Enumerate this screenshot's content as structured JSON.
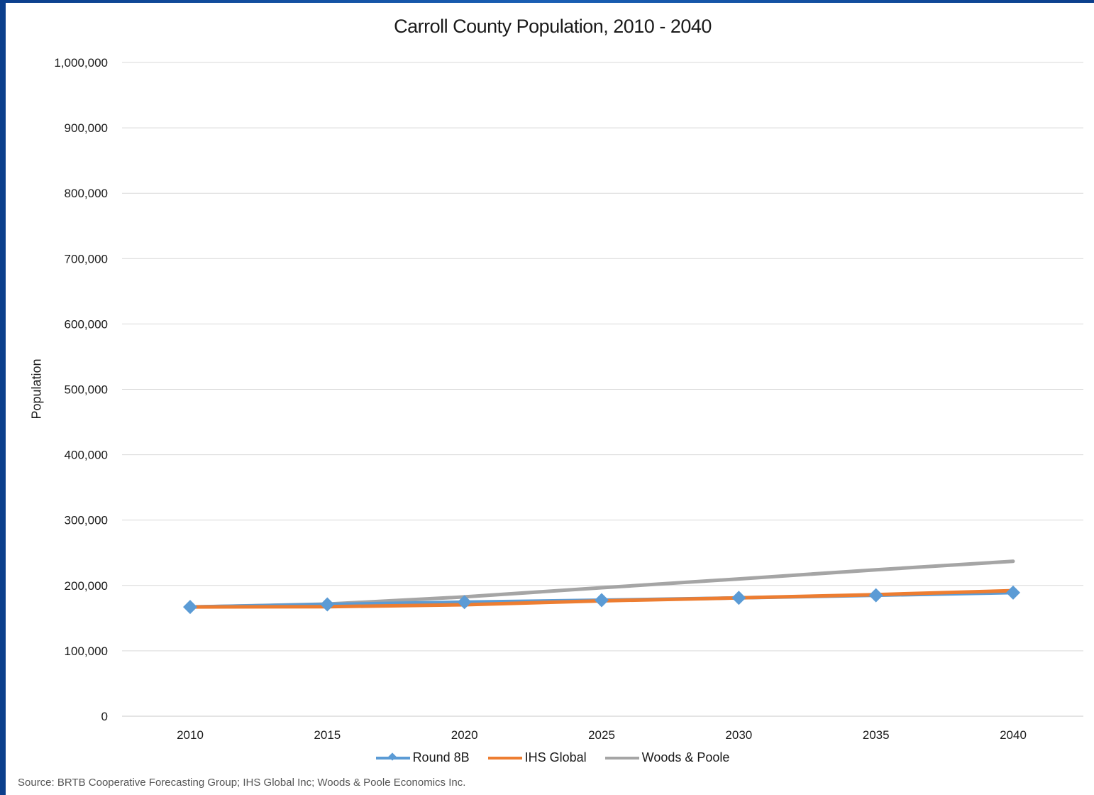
{
  "chart_data": {
    "type": "line",
    "title": "Carroll County Population, 2010 - 2040",
    "xlabel": "",
    "ylabel": "Population",
    "categories": [
      "2010",
      "2015",
      "2020",
      "2025",
      "2030",
      "2035",
      "2040"
    ],
    "ylim": [
      0,
      1000000
    ],
    "yticks": [
      "0",
      "100,000",
      "200,000",
      "300,000",
      "400,000",
      "500,000",
      "600,000",
      "700,000",
      "800,000",
      "900,000",
      "1,000,000"
    ],
    "grid": true,
    "legend_position": "bottom",
    "series": [
      {
        "name": "Round 8B",
        "color": "#5b9bd5",
        "marker": "diamond",
        "values": [
          167100,
          171000,
          174500,
          177500,
          181000,
          185000,
          189000
        ]
      },
      {
        "name": "IHS Global",
        "color": "#ed7d31",
        "marker": "none",
        "values": [
          167100,
          167500,
          170500,
          176500,
          181000,
          186000,
          192000
        ]
      },
      {
        "name": "Woods & Poole",
        "color": "#a5a5a5",
        "marker": "none",
        "values": [
          167100,
          171500,
          182500,
          196500,
          210000,
          224000,
          237000
        ]
      }
    ]
  },
  "source": "Source: BRTB Cooperative Forecasting Group; IHS Global Inc; Woods & Poole Economics Inc."
}
